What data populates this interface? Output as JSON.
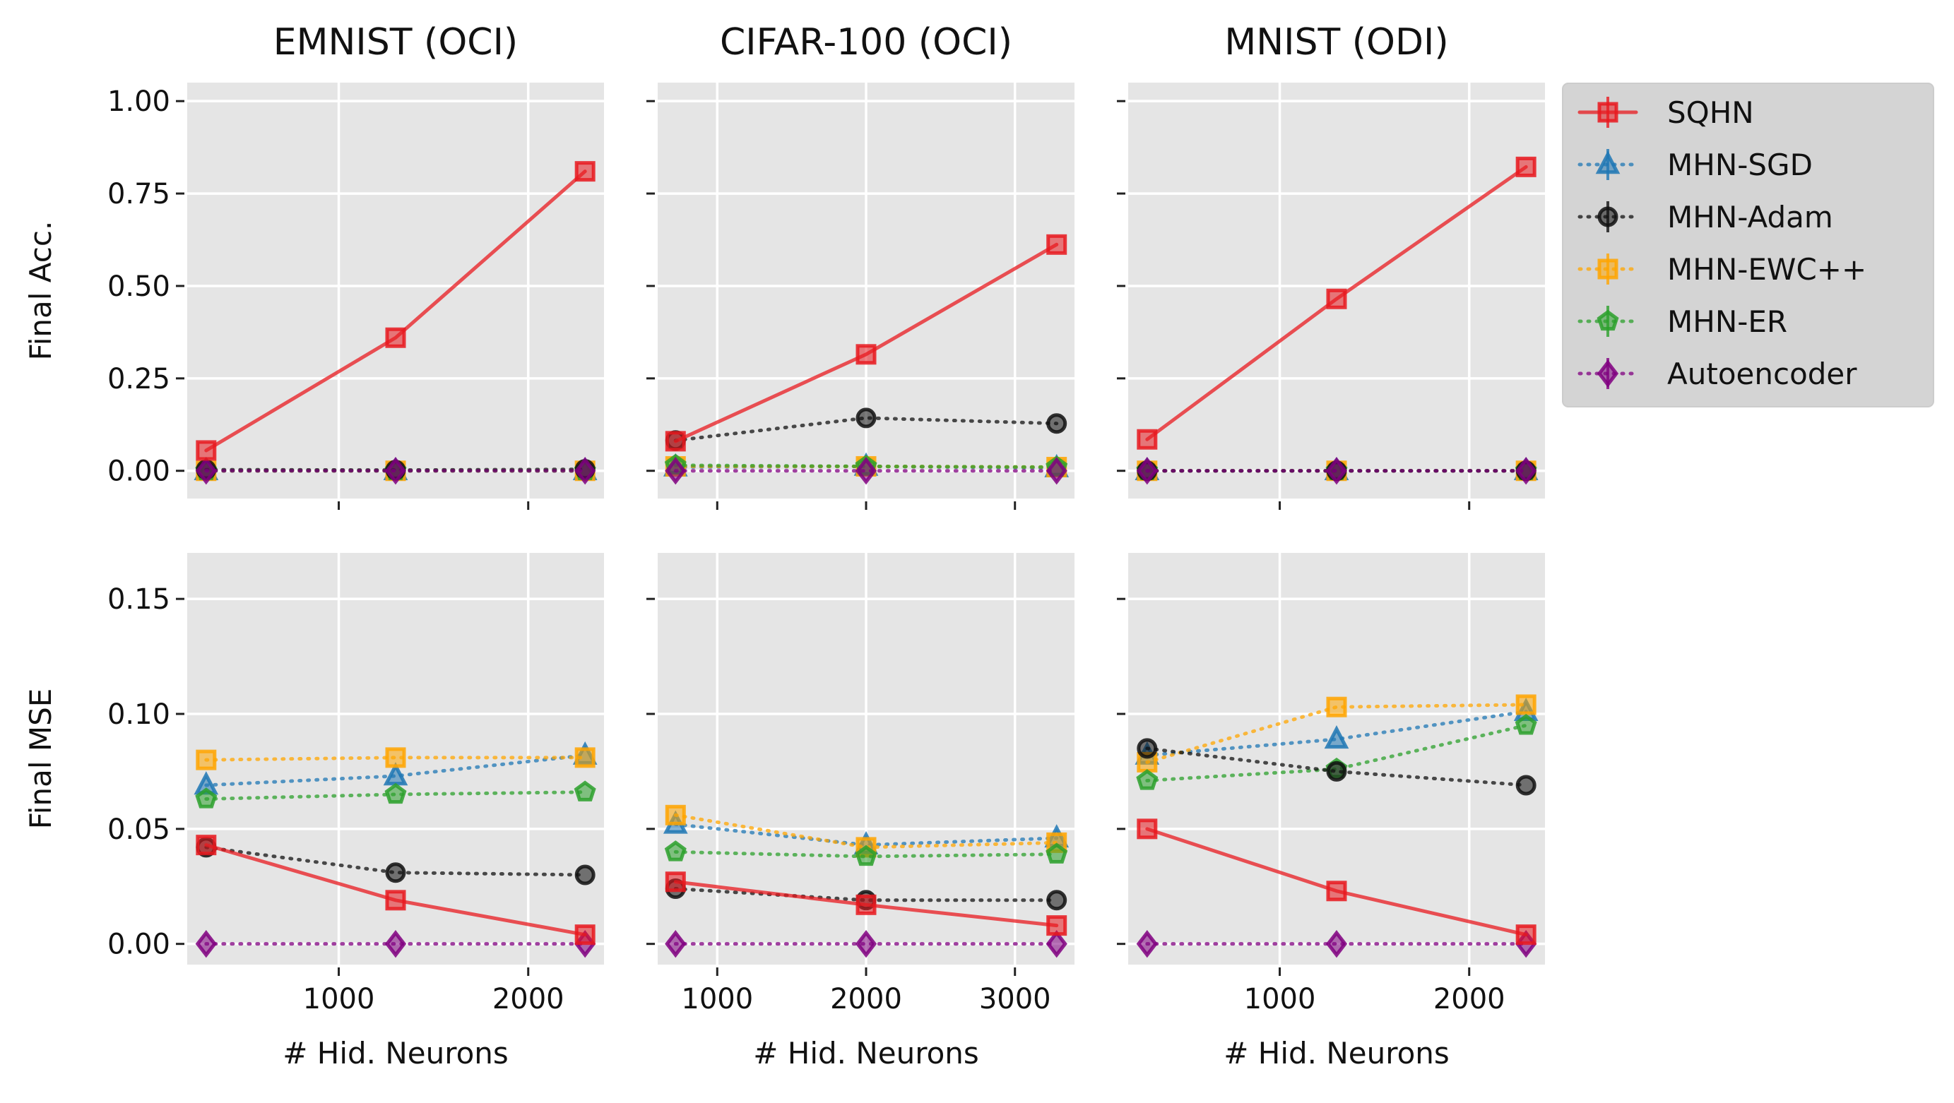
{
  "chart_data": {
    "type": "line",
    "legend": {
      "placement": "upper-right-outside",
      "entries": [
        "SQHN",
        "MHN-SGD",
        "MHN-Adam",
        "MHN-EWC++",
        "MHN-ER",
        "Autoencoder"
      ]
    },
    "series_styles": [
      {
        "name": "SQHN",
        "color": "#e8191f",
        "marker": "square",
        "line": "solid"
      },
      {
        "name": "MHN-SGD",
        "color": "#1f77b4",
        "marker": "triangle",
        "line": "dotted"
      },
      {
        "name": "MHN-Adam",
        "color": "#111111",
        "marker": "circle",
        "line": "dotted"
      },
      {
        "name": "MHN-EWC++",
        "color": "#ffa500",
        "marker": "square",
        "line": "dotted"
      },
      {
        "name": "MHN-ER",
        "color": "#2ca02c",
        "marker": "pentagon",
        "line": "dotted"
      },
      {
        "name": "Autoencoder",
        "color": "#800080",
        "marker": "diamond",
        "line": "dotted"
      }
    ],
    "panels": [
      {
        "id": "emnist-acc",
        "title": "EMNIST (OCI)",
        "ylabel": "Final Acc.",
        "xlabel": "",
        "xlim": [
          200,
          2400
        ],
        "ylim": [
          -0.075,
          1.05
        ],
        "xticks": [
          1000,
          2000
        ],
        "xticklabels": [
          "",
          ""
        ],
        "yticks": [
          0,
          0.25,
          0.5,
          0.75,
          1.0
        ],
        "yticklabels": [
          "0.00",
          "0.25",
          "0.50",
          "0.75",
          "1.00"
        ],
        "x": [
          300,
          1300,
          2300
        ],
        "series": [
          {
            "name": "SQHN",
            "values": [
              0.055,
              0.36,
              0.81
            ]
          },
          {
            "name": "MHN-SGD",
            "values": [
              0.0,
              0.0,
              0.0
            ]
          },
          {
            "name": "MHN-Adam",
            "values": [
              0.003,
              0.002,
              0.004
            ]
          },
          {
            "name": "MHN-EWC++",
            "values": [
              0.0,
              0.0,
              0.0
            ]
          },
          {
            "name": "MHN-ER",
            "values": [
              0.0,
              0.0,
              0.0
            ]
          },
          {
            "name": "Autoencoder",
            "values": [
              0.0,
              0.0,
              0.0
            ]
          }
        ]
      },
      {
        "id": "cifar-acc",
        "title": "CIFAR-100 (OCI)",
        "ylabel": "",
        "xlabel": "",
        "xlim": [
          600,
          3400
        ],
        "ylim": [
          -0.075,
          1.05
        ],
        "xticks": [
          1000,
          2000,
          3000
        ],
        "xticklabels": [
          "",
          "",
          ""
        ],
        "yticks": [
          0,
          0.25,
          0.5,
          0.75,
          1.0
        ],
        "yticklabels": [
          "",
          "",
          "",
          "",
          ""
        ],
        "x": [
          720,
          2000,
          3280
        ],
        "series": [
          {
            "name": "SQHN",
            "values": [
              0.08,
              0.315,
              0.612
            ]
          },
          {
            "name": "MHN-SGD",
            "values": [
              0.01,
              0.012,
              0.008
            ]
          },
          {
            "name": "MHN-Adam",
            "values": [
              0.082,
              0.143,
              0.128
            ]
          },
          {
            "name": "MHN-EWC++",
            "values": [
              0.012,
              0.012,
              0.01
            ]
          },
          {
            "name": "MHN-ER",
            "values": [
              0.015,
              0.012,
              0.01
            ]
          },
          {
            "name": "Autoencoder",
            "values": [
              0.0,
              0.0,
              0.0
            ]
          }
        ]
      },
      {
        "id": "mnist-acc",
        "title": "MNIST (ODI)",
        "ylabel": "",
        "xlabel": "",
        "xlim": [
          200,
          2400
        ],
        "ylim": [
          -0.075,
          1.05
        ],
        "xticks": [
          1000,
          2000
        ],
        "xticklabels": [
          "",
          ""
        ],
        "yticks": [
          0,
          0.25,
          0.5,
          0.75,
          1.0
        ],
        "yticklabels": [
          "",
          "",
          "",
          "",
          ""
        ],
        "x": [
          300,
          1300,
          2300
        ],
        "series": [
          {
            "name": "SQHN",
            "values": [
              0.085,
              0.465,
              0.822
            ]
          },
          {
            "name": "MHN-SGD",
            "values": [
              0.0,
              0.0,
              0.0
            ]
          },
          {
            "name": "MHN-Adam",
            "values": [
              0.0,
              0.0,
              0.0
            ]
          },
          {
            "name": "MHN-EWC++",
            "values": [
              0.0,
              0.0,
              0.0
            ]
          },
          {
            "name": "MHN-ER",
            "values": [
              0.0,
              0.0,
              0.0
            ]
          },
          {
            "name": "Autoencoder",
            "values": [
              0.0,
              0.0,
              0.0
            ]
          }
        ]
      },
      {
        "id": "emnist-mse",
        "title": "",
        "ylabel": "Final MSE",
        "xlabel": "# Hid. Neurons",
        "xlim": [
          200,
          2400
        ],
        "ylim": [
          -0.009,
          0.17
        ],
        "xticks": [
          1000,
          2000
        ],
        "xticklabels": [
          "1000",
          "2000"
        ],
        "yticks": [
          0,
          0.05,
          0.1,
          0.15
        ],
        "yticklabels": [
          "0.00",
          "0.05",
          "0.10",
          "0.15"
        ],
        "x": [
          300,
          1300,
          2300
        ],
        "series": [
          {
            "name": "SQHN",
            "values": [
              0.043,
              0.019,
              0.004
            ]
          },
          {
            "name": "MHN-SGD",
            "values": [
              0.069,
              0.073,
              0.082
            ]
          },
          {
            "name": "MHN-Adam",
            "values": [
              0.042,
              0.031,
              0.03
            ]
          },
          {
            "name": "MHN-EWC++",
            "values": [
              0.08,
              0.081,
              0.081
            ]
          },
          {
            "name": "MHN-ER",
            "values": [
              0.063,
              0.065,
              0.066
            ]
          },
          {
            "name": "Autoencoder",
            "values": [
              0.0,
              0.0,
              0.0
            ]
          }
        ]
      },
      {
        "id": "cifar-mse",
        "title": "",
        "ylabel": "",
        "xlabel": "# Hid. Neurons",
        "xlim": [
          600,
          3400
        ],
        "ylim": [
          -0.009,
          0.17
        ],
        "xticks": [
          1000,
          2000,
          3000
        ],
        "xticklabels": [
          "1000",
          "2000",
          "3000"
        ],
        "yticks": [
          0,
          0.05,
          0.1,
          0.15
        ],
        "yticklabels": [
          "",
          "",
          "",
          ""
        ],
        "x": [
          720,
          2000,
          3280
        ],
        "series": [
          {
            "name": "SQHN",
            "values": [
              0.027,
              0.017,
              0.008
            ]
          },
          {
            "name": "MHN-SGD",
            "values": [
              0.052,
              0.043,
              0.046
            ]
          },
          {
            "name": "MHN-Adam",
            "values": [
              0.024,
              0.019,
              0.019
            ]
          },
          {
            "name": "MHN-EWC++",
            "values": [
              0.056,
              0.042,
              0.044
            ]
          },
          {
            "name": "MHN-ER",
            "values": [
              0.04,
              0.038,
              0.039
            ]
          },
          {
            "name": "Autoencoder",
            "values": [
              0.0,
              0.0,
              0.0
            ]
          }
        ]
      },
      {
        "id": "mnist-mse",
        "title": "",
        "ylabel": "",
        "xlabel": "# Hid. Neurons",
        "xlim": [
          200,
          2400
        ],
        "ylim": [
          -0.009,
          0.17
        ],
        "xticks": [
          1000,
          2000
        ],
        "xticklabels": [
          "1000",
          "2000"
        ],
        "yticks": [
          0,
          0.05,
          0.1,
          0.15
        ],
        "yticklabels": [
          "",
          "",
          "",
          ""
        ],
        "x": [
          300,
          1300,
          2300
        ],
        "series": [
          {
            "name": "SQHN",
            "values": [
              0.05,
              0.023,
              0.004
            ]
          },
          {
            "name": "MHN-SGD",
            "values": [
              0.082,
              0.089,
              0.101
            ]
          },
          {
            "name": "MHN-Adam",
            "values": [
              0.085,
              0.075,
              0.069
            ]
          },
          {
            "name": "MHN-EWC++",
            "values": [
              0.079,
              0.103,
              0.104
            ]
          },
          {
            "name": "MHN-ER",
            "values": [
              0.071,
              0.076,
              0.095
            ]
          },
          {
            "name": "Autoencoder",
            "values": [
              0.0,
              0.0,
              0.0
            ]
          }
        ]
      }
    ]
  }
}
